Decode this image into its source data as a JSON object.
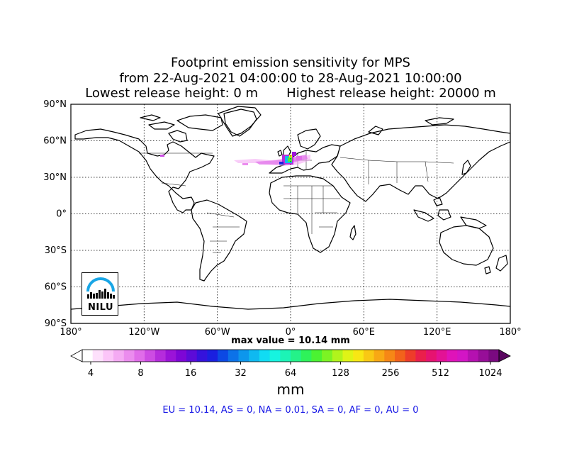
{
  "title": {
    "line1": "Footprint emission sensitivity for MPS",
    "line2": "from 22-Aug-2021 04:00:00 to 28-Aug-2021 10:00:00",
    "line3_left": "Lowest release height: 0 m",
    "line3_right": "Highest release height: 20000 m"
  },
  "map": {
    "lat_labels": [
      "90°N",
      "60°N",
      "30°N",
      "0°",
      "30°S",
      "60°S",
      "90°S"
    ],
    "lon_labels": [
      "180°",
      "120°W",
      "60°W",
      "0°",
      "60°E",
      "120°E",
      "180°"
    ],
    "lon_range": [
      -180,
      180
    ],
    "lat_range": [
      -90,
      90
    ],
    "gridlines": "dotted",
    "logo_text": "NILU"
  },
  "max_value": "max value = 10.14 mm",
  "colorbar": {
    "tick_labels": [
      "4",
      "8",
      "16",
      "32",
      "64",
      "128",
      "256",
      "512",
      "1024"
    ],
    "unit": "mm",
    "colors": [
      "#ffffff",
      "#fde0fb",
      "#fbc5f8",
      "#f4aaf3",
      "#eb8cee",
      "#e06de9",
      "#cd4ce3",
      "#b52cdc",
      "#9b13d8",
      "#7e06d6",
      "#5c0bd8",
      "#3512dc",
      "#1a1fe0",
      "#0c49e4",
      "#0c72e8",
      "#0d96ec",
      "#0fb9f0",
      "#11dcf3",
      "#16f4e0",
      "#1cf4b6",
      "#24f289",
      "#2ef25a",
      "#4bf232",
      "#7cf324",
      "#b1f41c",
      "#dff416",
      "#f8e714",
      "#f9c814",
      "#f8a814",
      "#f68716",
      "#f2621b",
      "#ee3c2a",
      "#ea1f4b",
      "#e61370",
      "#e31295",
      "#df13b9",
      "#d315c5",
      "#b511b0",
      "#970e98",
      "#7a0a80"
    ]
  },
  "totals": "EU = 10.14,  AS = 0,  NA = 0.01,  SA = 0,  AF = 0,  AU = 0",
  "footprint": {
    "region": "Europe / North Atlantic",
    "centroid_lon": 6,
    "centroid_lat": 46
  }
}
